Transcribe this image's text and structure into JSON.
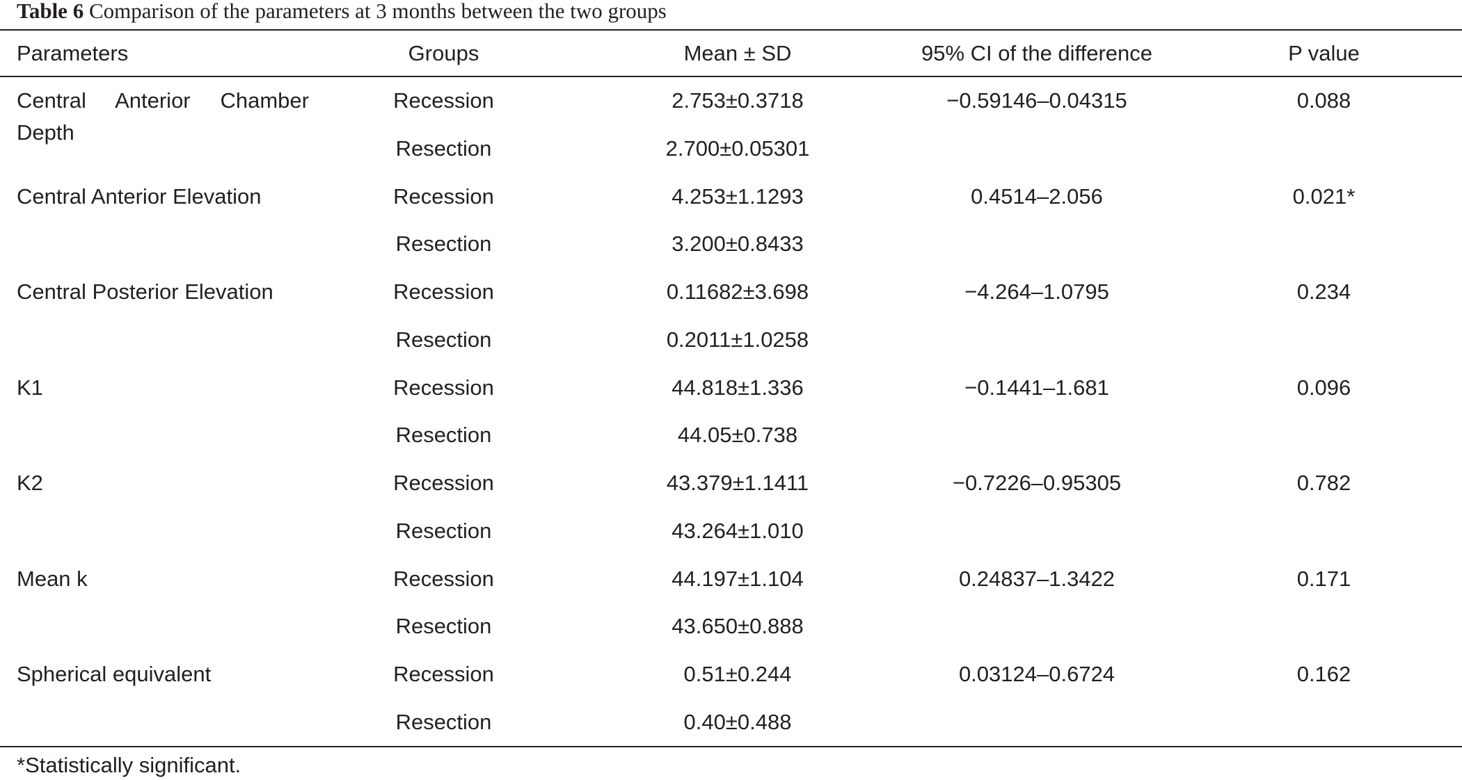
{
  "caption": {
    "label": "Table 6",
    "text": "Comparison of the parameters at 3 months between the two groups"
  },
  "table": {
    "headers": [
      "Parameters",
      "Groups",
      "Mean ± SD",
      "95% CI of the difference",
      "P value"
    ],
    "rows": [
      {
        "parameter": "Central Anterior Chamber Depth",
        "group": "Recession",
        "mean_sd": "2.753±0.3718",
        "ci": "−0.59146–0.04315",
        "p": "0.088"
      },
      {
        "parameter": "",
        "group": "Resection",
        "mean_sd": "2.700±0.05301",
        "ci": "",
        "p": ""
      },
      {
        "parameter": "Central Anterior Elevation",
        "group": "Recession",
        "mean_sd": "4.253±1.1293",
        "ci": "0.4514–2.056",
        "p": "0.021*"
      },
      {
        "parameter": "",
        "group": "Resection",
        "mean_sd": "3.200±0.8433",
        "ci": "",
        "p": ""
      },
      {
        "parameter": "Central Posterior Elevation",
        "group": "Recession",
        "mean_sd": "0.11682±3.698",
        "ci": "−4.264–1.0795",
        "p": "0.234"
      },
      {
        "parameter": "",
        "group": "Resection",
        "mean_sd": "0.2011±1.0258",
        "ci": "",
        "p": ""
      },
      {
        "parameter": "K1",
        "group": "Recession",
        "mean_sd": "44.818±1.336",
        "ci": "−0.1441–1.681",
        "p": "0.096"
      },
      {
        "parameter": "",
        "group": "Resection",
        "mean_sd": "44.05±0.738",
        "ci": "",
        "p": ""
      },
      {
        "parameter": "K2",
        "group": "Recession",
        "mean_sd": "43.379±1.1411",
        "ci": "−0.7226–0.95305",
        "p": "0.782"
      },
      {
        "parameter": "",
        "group": "Resection",
        "mean_sd": "43.264±1.010",
        "ci": "",
        "p": ""
      },
      {
        "parameter": "Mean k",
        "group": "Recession",
        "mean_sd": "44.197±1.104",
        "ci": "0.24837–1.3422",
        "p": "0.171"
      },
      {
        "parameter": "",
        "group": "Resection",
        "mean_sd": "43.650±0.888",
        "ci": "",
        "p": ""
      },
      {
        "parameter": "Spherical equivalent",
        "group": "Recession",
        "mean_sd": "0.51±0.244",
        "ci": "0.03124–0.6724",
        "p": "0.162"
      },
      {
        "parameter": "",
        "group": "Resection",
        "mean_sd": "0.40±0.488",
        "ci": "",
        "p": ""
      }
    ]
  },
  "footnote": "*Statistically significant."
}
